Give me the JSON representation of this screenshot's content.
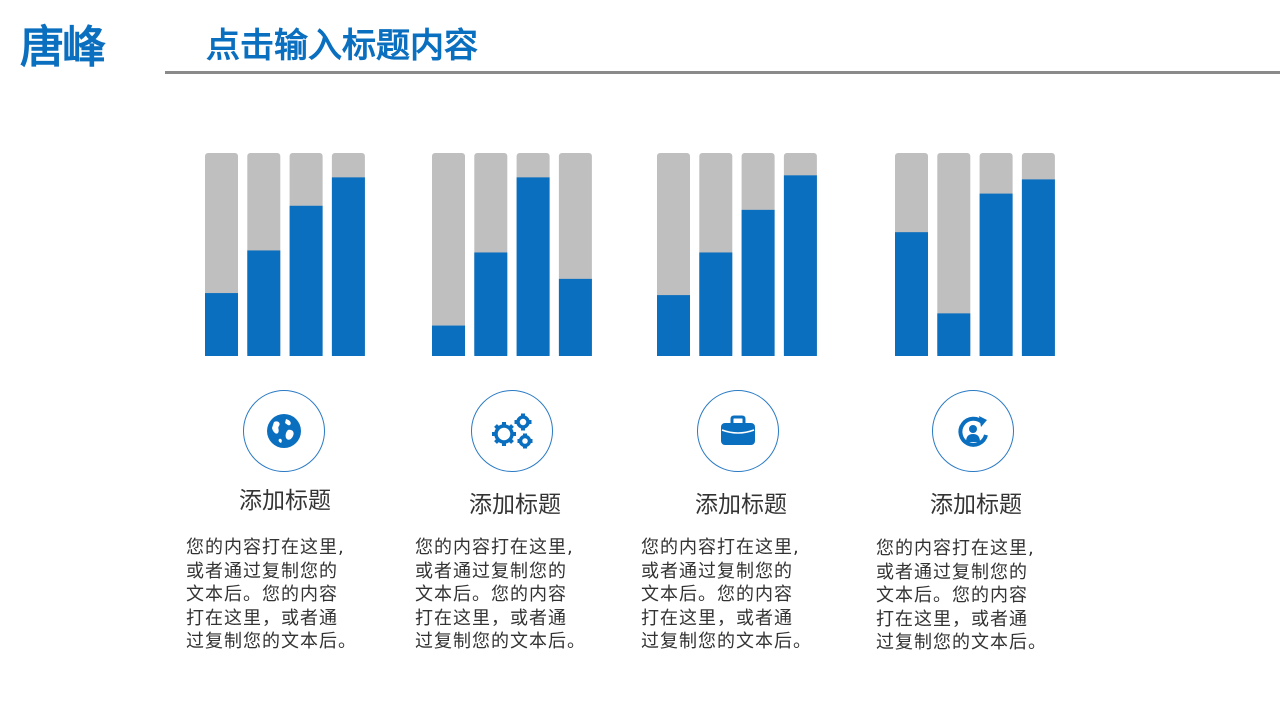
{
  "header": {
    "logo": "唐峰",
    "title": "点击输入标题内容"
  },
  "colors": {
    "accent": "#0b6fbf",
    "track": "#bfbfbf",
    "rule": "#8a8a8a",
    "text": "#333333"
  },
  "chart_data": [
    {
      "type": "bar",
      "values": [
        31,
        52,
        74,
        88
      ],
      "ylim": [
        0,
        100
      ]
    },
    {
      "type": "bar",
      "values": [
        15,
        51,
        88,
        38
      ],
      "ylim": [
        0,
        100
      ]
    },
    {
      "type": "bar",
      "values": [
        30,
        51,
        72,
        89
      ],
      "ylim": [
        0,
        100
      ]
    },
    {
      "type": "bar",
      "values": [
        61,
        21,
        80,
        87
      ],
      "ylim": [
        0,
        100
      ]
    }
  ],
  "cards": [
    {
      "icon": "globe-icon",
      "title": "添加标题",
      "body": [
        "您的内容打在这里,",
        "或者通过复制您的",
        "文本后。您的内容",
        "打在这里，或者通",
        "过复制您的文本后。"
      ]
    },
    {
      "icon": "gears-icon",
      "title": "添加标题",
      "body": [
        "您的内容打在这里,",
        "或者通过复制您的",
        "文本后。您的内容",
        "打在这里，或者通",
        "过复制您的文本后。"
      ]
    },
    {
      "icon": "briefcase-icon",
      "title": "添加标题",
      "body": [
        "您的内容打在这里,",
        "或者通过复制您的",
        "文本后。您的内容",
        "打在这里，或者通",
        "过复制您的文本后。"
      ]
    },
    {
      "icon": "person-refresh-icon",
      "title": "添加标题",
      "body": [
        "您的内容打在这里,",
        "或者通过复制您的",
        "文本后。您的内容",
        "打在这里，或者通",
        "过复制您的文本后。"
      ]
    }
  ]
}
